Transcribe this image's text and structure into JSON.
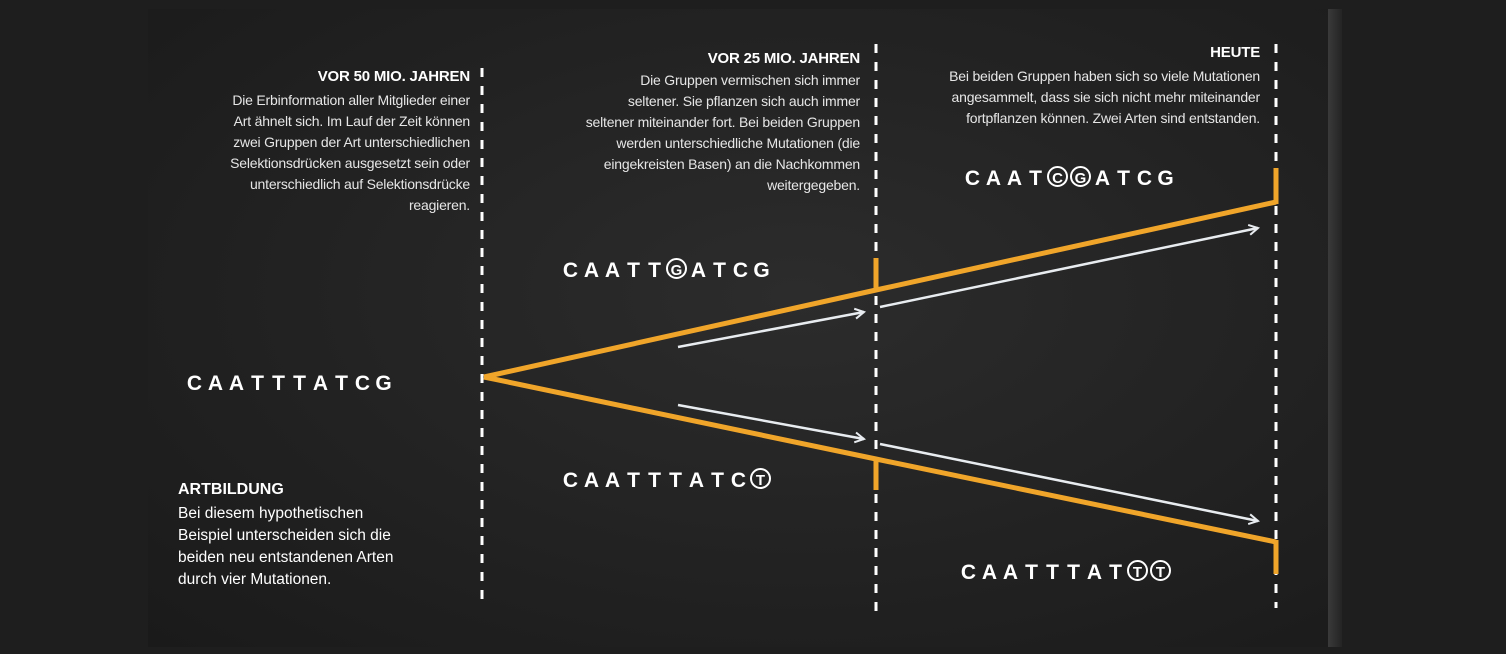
{
  "colors": {
    "background": "#232323",
    "branch": "#f0a52a",
    "arrow": "#e8ecf0",
    "divider": "#ffffff",
    "text": "#ffffff"
  },
  "columns": [
    {
      "heading": "VOR 50 MIO. JAHREN",
      "text_lines": [
        "Die Erbinformation aller Mitglieder einer",
        "Art ähnelt sich. Im Lauf der Zeit können",
        "zwei Gruppen der Art unterschiedlichen",
        "Selektionsdrücken ausgesetzt sein oder",
        "unterschiedlich auf Selektionsdrücke",
        "reagieren."
      ]
    },
    {
      "heading": "VOR 25 MIO. JAHREN",
      "text_lines": [
        "Die Gruppen vermischen sich immer",
        "seltener. Sie pflanzen sich auch immer",
        "seltener miteinander fort. Bei beiden Gruppen",
        "werden unterschiedliche Mutationen (die",
        "eingekreisten Basen) an die Nachkommen",
        "weitergegeben."
      ]
    },
    {
      "heading": "HEUTE",
      "text_lines": [
        "Bei beiden Gruppen haben sich so viele Mutationen",
        "angesammelt, dass sie sich nicht mehr miteinander",
        "fortpflanzen können. Zwei Arten sind entstanden."
      ]
    }
  ],
  "sequences": {
    "ancestor": {
      "bases": [
        "C",
        "A",
        "A",
        "T",
        "T",
        "T",
        "A",
        "T",
        "C",
        "G"
      ],
      "circled": []
    },
    "upper_25": {
      "bases": [
        "C",
        "A",
        "A",
        "T",
        "T",
        "G",
        "A",
        "T",
        "C",
        "G"
      ],
      "circled": [
        5
      ]
    },
    "lower_25": {
      "bases": [
        "C",
        "A",
        "A",
        "T",
        "T",
        "T",
        "A",
        "T",
        "C",
        "T"
      ],
      "circled": [
        9
      ]
    },
    "upper_today": {
      "bases": [
        "C",
        "A",
        "A",
        "T",
        "C",
        "G",
        "A",
        "T",
        "C",
        "G"
      ],
      "circled": [
        4,
        5
      ]
    },
    "lower_today": {
      "bases": [
        "C",
        "A",
        "A",
        "T",
        "T",
        "T",
        "A",
        "T",
        "T",
        "T"
      ],
      "circled": [
        8,
        9
      ]
    }
  },
  "note": {
    "title": "ARTBILDUNG",
    "lines": [
      "Bei diesem hypothetischen",
      "Beispiel unterscheiden sich die",
      "beiden neu entstandenen Arten",
      "durch vier Mutationen."
    ]
  }
}
